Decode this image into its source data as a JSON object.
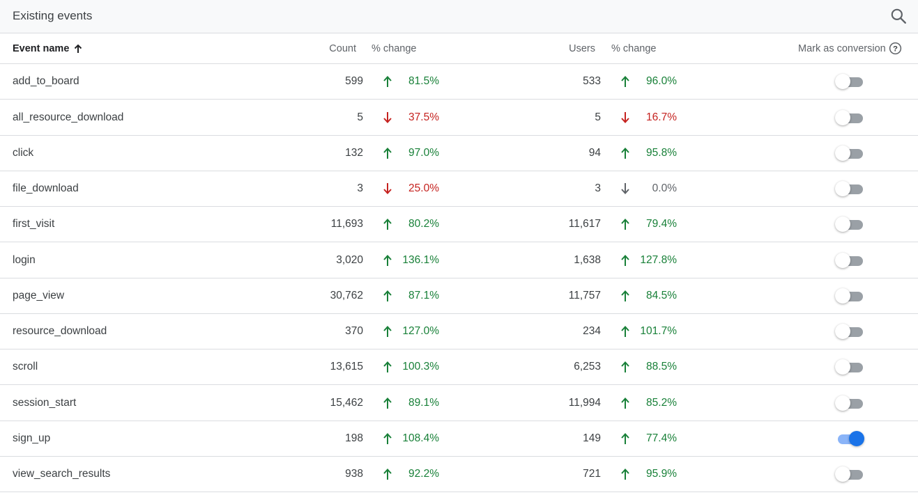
{
  "header": {
    "title": "Existing events"
  },
  "columns": {
    "event_name": "Event name",
    "count": "Count",
    "count_change": "% change",
    "users": "Users",
    "users_change": "% change",
    "mark_as_conversion": "Mark as conversion"
  },
  "colors": {
    "up": "#188038",
    "down": "#c5221f",
    "neutral": "#5f6368",
    "toggle_on": "#1a73e8"
  },
  "rows": [
    {
      "name": "add_to_board",
      "count": "599",
      "count_trend": "up",
      "count_change": "81.5%",
      "users": "533",
      "users_trend": "up",
      "users_change": "96.0%",
      "conversion": false
    },
    {
      "name": "all_resource_download",
      "count": "5",
      "count_trend": "down",
      "count_change": "37.5%",
      "users": "5",
      "users_trend": "down",
      "users_change": "16.7%",
      "conversion": false
    },
    {
      "name": "click",
      "count": "132",
      "count_trend": "up",
      "count_change": "97.0%",
      "users": "94",
      "users_trend": "up",
      "users_change": "95.8%",
      "conversion": false
    },
    {
      "name": "file_download",
      "count": "3",
      "count_trend": "down",
      "count_change": "25.0%",
      "users": "3",
      "users_trend": "neutral",
      "users_change": "0.0%",
      "conversion": false
    },
    {
      "name": "first_visit",
      "count": "11,693",
      "count_trend": "up",
      "count_change": "80.2%",
      "users": "11,617",
      "users_trend": "up",
      "users_change": "79.4%",
      "conversion": false
    },
    {
      "name": "login",
      "count": "3,020",
      "count_trend": "up",
      "count_change": "136.1%",
      "users": "1,638",
      "users_trend": "up",
      "users_change": "127.8%",
      "conversion": false
    },
    {
      "name": "page_view",
      "count": "30,762",
      "count_trend": "up",
      "count_change": "87.1%",
      "users": "11,757",
      "users_trend": "up",
      "users_change": "84.5%",
      "conversion": false
    },
    {
      "name": "resource_download",
      "count": "370",
      "count_trend": "up",
      "count_change": "127.0%",
      "users": "234",
      "users_trend": "up",
      "users_change": "101.7%",
      "conversion": false
    },
    {
      "name": "scroll",
      "count": "13,615",
      "count_trend": "up",
      "count_change": "100.3%",
      "users": "6,253",
      "users_trend": "up",
      "users_change": "88.5%",
      "conversion": false
    },
    {
      "name": "session_start",
      "count": "15,462",
      "count_trend": "up",
      "count_change": "89.1%",
      "users": "11,994",
      "users_trend": "up",
      "users_change": "85.2%",
      "conversion": false
    },
    {
      "name": "sign_up",
      "count": "198",
      "count_trend": "up",
      "count_change": "108.4%",
      "users": "149",
      "users_trend": "up",
      "users_change": "77.4%",
      "conversion": true
    },
    {
      "name": "view_search_results",
      "count": "938",
      "count_trend": "up",
      "count_change": "92.2%",
      "users": "721",
      "users_trend": "up",
      "users_change": "95.9%",
      "conversion": false
    }
  ]
}
